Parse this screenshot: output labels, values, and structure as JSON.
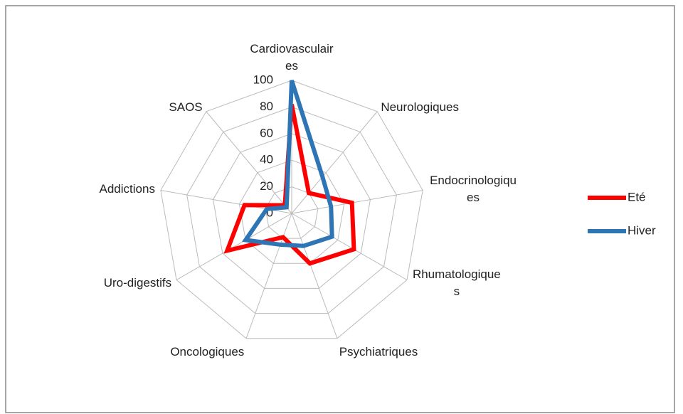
{
  "chart_data": {
    "type": "radar",
    "categories": [
      "Cardiovasculaires",
      "Neurologiques",
      "Endocrinologiques",
      "Rhumatologiques",
      "Psychiatriques",
      "Oncologiques",
      "Uro-digestifs",
      "Addictions",
      "SAOS"
    ],
    "series": [
      {
        "name": "Eté",
        "color": "#ff0000",
        "values": [
          82,
          20,
          46,
          54,
          40,
          19,
          56,
          36,
          8
        ]
      },
      {
        "name": "Hiver",
        "color": "#2e75b6",
        "values": [
          100,
          36,
          30,
          35,
          26,
          25,
          40,
          19,
          6
        ]
      }
    ],
    "rlim": [
      0,
      100
    ],
    "rticks": [
      0,
      20,
      40,
      60,
      80,
      100
    ],
    "grid": true,
    "legend": "right"
  }
}
